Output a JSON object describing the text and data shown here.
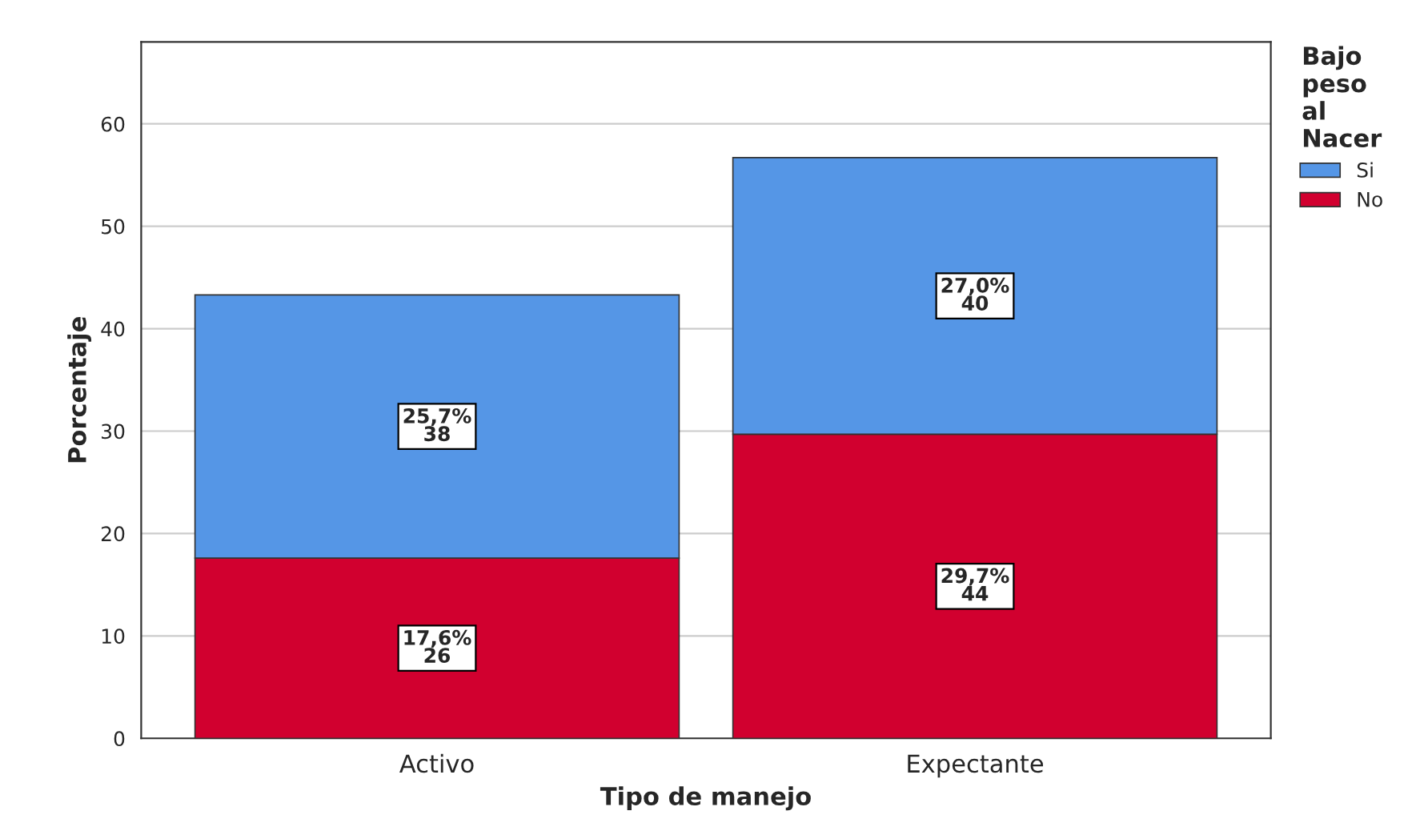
{
  "chart_data": {
    "type": "bar",
    "stacked": true,
    "xlabel": "Tipo de manejo",
    "ylabel": "Porcentaje",
    "legend_title": "Bajo\npeso\nal\nNacer",
    "categories": [
      "Activo",
      "Expectante"
    ],
    "series": [
      {
        "name": "No",
        "color": "#d1002f",
        "values": [
          17.6,
          29.7
        ],
        "value_labels": [
          "17,6%\n26",
          "29,7%\n44"
        ]
      },
      {
        "name": "Si",
        "color": "#5596e6",
        "values": [
          25.7,
          27.0
        ],
        "value_labels": [
          "25,7%\n38",
          "27,0%\n40"
        ]
      }
    ],
    "ylim": [
      0,
      68
    ],
    "yticks": [
      0,
      10,
      20,
      30,
      40,
      50,
      60
    ],
    "grid": "y",
    "legend": "top right"
  }
}
